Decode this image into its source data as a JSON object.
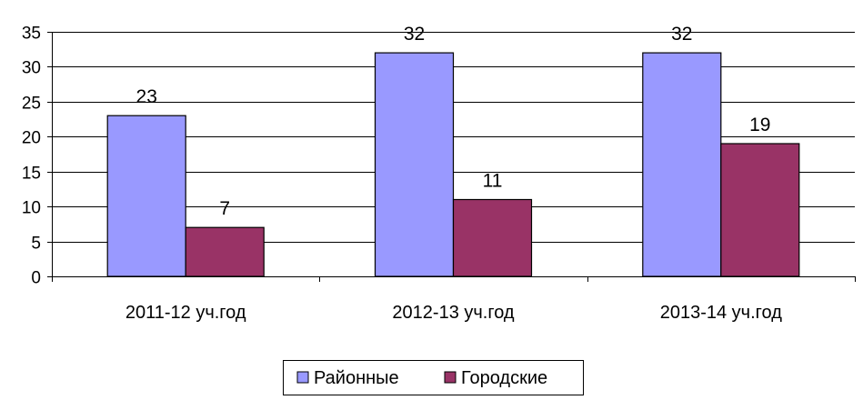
{
  "chart_data": {
    "type": "bar",
    "categories": [
      "2011-12 уч.год",
      "2012-13 уч.год",
      "2013-14 уч.год"
    ],
    "series": [
      {
        "name": "Районные",
        "values": [
          23,
          32,
          32
        ],
        "color": "#9999FF"
      },
      {
        "name": "Городские",
        "values": [
          7,
          11,
          19
        ],
        "color": "#993366"
      }
    ],
    "ylim": [
      0,
      35
    ],
    "yticks": [
      "0",
      "5",
      "10",
      "15",
      "20",
      "25",
      "30",
      "35"
    ],
    "grid": true,
    "legend": "bottom",
    "title": "",
    "xlabel": "",
    "ylabel": ""
  }
}
